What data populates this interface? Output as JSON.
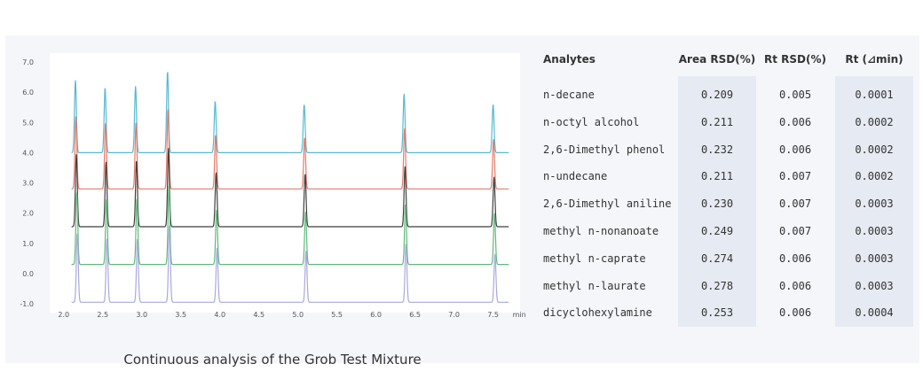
{
  "chart_data": {
    "type": "line",
    "title": "",
    "xlabel": "",
    "ylabel": "",
    "x_unit_label": "min",
    "xlim": [
      1.9,
      7.8
    ],
    "ylim": [
      -1.0,
      7.0
    ],
    "x_ticks": [
      2.0,
      2.5,
      3.0,
      3.5,
      4.0,
      4.5,
      5.0,
      5.5,
      6.0,
      6.5,
      7.0,
      7.5
    ],
    "x_tick_labels": [
      "2.0",
      "2.5",
      "3.0",
      "3.5",
      "4.0",
      "4.5",
      "5.0",
      "5.5",
      "6.0",
      "6.5",
      "7.0",
      "7.5"
    ],
    "y_ticks": [
      -1.0,
      0.0,
      1.0,
      2.0,
      3.0,
      4.0,
      5.0,
      6.0,
      7.0
    ],
    "y_tick_labels": [
      "-1.0",
      "0.0",
      "1.0",
      "2.0",
      "3.0",
      "4.0",
      "5.0",
      "6.0",
      "7.0"
    ],
    "grid": false,
    "peak_times": [
      2.15,
      2.53,
      2.92,
      3.33,
      3.94,
      5.08,
      6.36,
      7.5
    ],
    "series": [
      {
        "color": "#56b9d2",
        "baseline": 4.0,
        "peak_heights": [
          2.4,
          2.15,
          2.2,
          2.7,
          1.7,
          1.6,
          1.95,
          1.6
        ]
      },
      {
        "color": "#e57a6a",
        "baseline": 2.8,
        "peak_heights": [
          2.4,
          2.2,
          2.2,
          2.65,
          1.8,
          1.7,
          2.0,
          1.65
        ]
      },
      {
        "color": "#3f3f3f",
        "baseline": 1.55,
        "peak_heights": [
          2.4,
          2.15,
          2.2,
          2.6,
          1.8,
          1.75,
          2.0,
          1.65
        ]
      },
      {
        "color": "#5fb97b",
        "baseline": 0.3,
        "peak_heights": [
          2.4,
          2.15,
          2.2,
          2.6,
          1.8,
          1.75,
          2.0,
          1.7
        ]
      },
      {
        "color": "#a9a9dc",
        "baseline": -0.95,
        "peak_heights": [
          2.3,
          2.1,
          2.1,
          2.55,
          1.8,
          1.7,
          1.95,
          1.6
        ]
      }
    ]
  },
  "caption": "Continuous analysis of the Grob Test Mixture",
  "table": {
    "headers": [
      "Analytes",
      "Area RSD(%)",
      "Rt RSD(%)",
      "Rt (⊿min)"
    ],
    "rows": [
      {
        "name": "n-decane",
        "area": "0.209",
        "rt": "0.005",
        "drt": "0.0001"
      },
      {
        "name": "n-octyl alcohol",
        "area": "0.211",
        "rt": "0.006",
        "drt": "0.0002"
      },
      {
        "name": "2,6-Dimethyl phenol",
        "area": "0.232",
        "rt": "0.006",
        "drt": "0.0002"
      },
      {
        "name": "n-undecane",
        "area": "0.211",
        "rt": "0.007",
        "drt": "0.0002"
      },
      {
        "name": "2,6-Dimethyl aniline",
        "area": "0.230",
        "rt": "0.007",
        "drt": "0.0003"
      },
      {
        "name": "methyl n-nonanoate",
        "area": "0.249",
        "rt": "0.007",
        "drt": "0.0003"
      },
      {
        "name": "methyl n-caprate",
        "area": "0.274",
        "rt": "0.006",
        "drt": "0.0003"
      },
      {
        "name": "methyl n-laurate",
        "area": "0.278",
        "rt": "0.006",
        "drt": "0.0003"
      },
      {
        "name": "dicyclohexylamine",
        "area": "0.253",
        "rt": "0.006",
        "drt": "0.0004"
      }
    ]
  }
}
